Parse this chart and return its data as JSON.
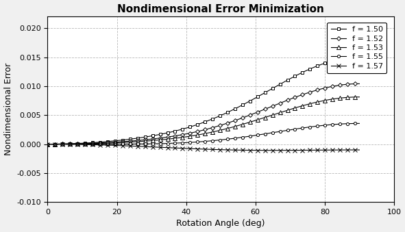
{
  "title": "Nondimensional Error Minimization",
  "xlabel": "Rotation Angle (deg)",
  "ylabel": "Nondimensional Error",
  "xlim": [
    0,
    100
  ],
  "ylim": [
    -0.01,
    0.022
  ],
  "yticks": [
    -0.01,
    -0.005,
    0.0,
    0.005,
    0.01,
    0.015,
    0.02
  ],
  "xticks": [
    0,
    20,
    40,
    60,
    80,
    100
  ],
  "series": [
    {
      "label": "f = 1.50",
      "f": 1.5,
      "marker": "s",
      "color": "#000000"
    },
    {
      "label": "f = 1.52",
      "f": 1.52,
      "marker": "D",
      "color": "#000000"
    },
    {
      "label": "f = 1.53",
      "f": 1.53,
      "marker": "^",
      "color": "#000000"
    },
    {
      "label": "f = 1.55",
      "f": 1.55,
      "marker": "o",
      "color": "#000000"
    },
    {
      "label": "f = 1.57",
      "f": 1.57,
      "marker": "x",
      "color": "#000000"
    }
  ],
  "background_color": "#f0f0f0",
  "plot_bg_color": "#ffffff",
  "grid_color": "#999999",
  "title_fontsize": 11,
  "label_fontsize": 9,
  "tick_fontsize": 8,
  "legend_fontsize": 8
}
